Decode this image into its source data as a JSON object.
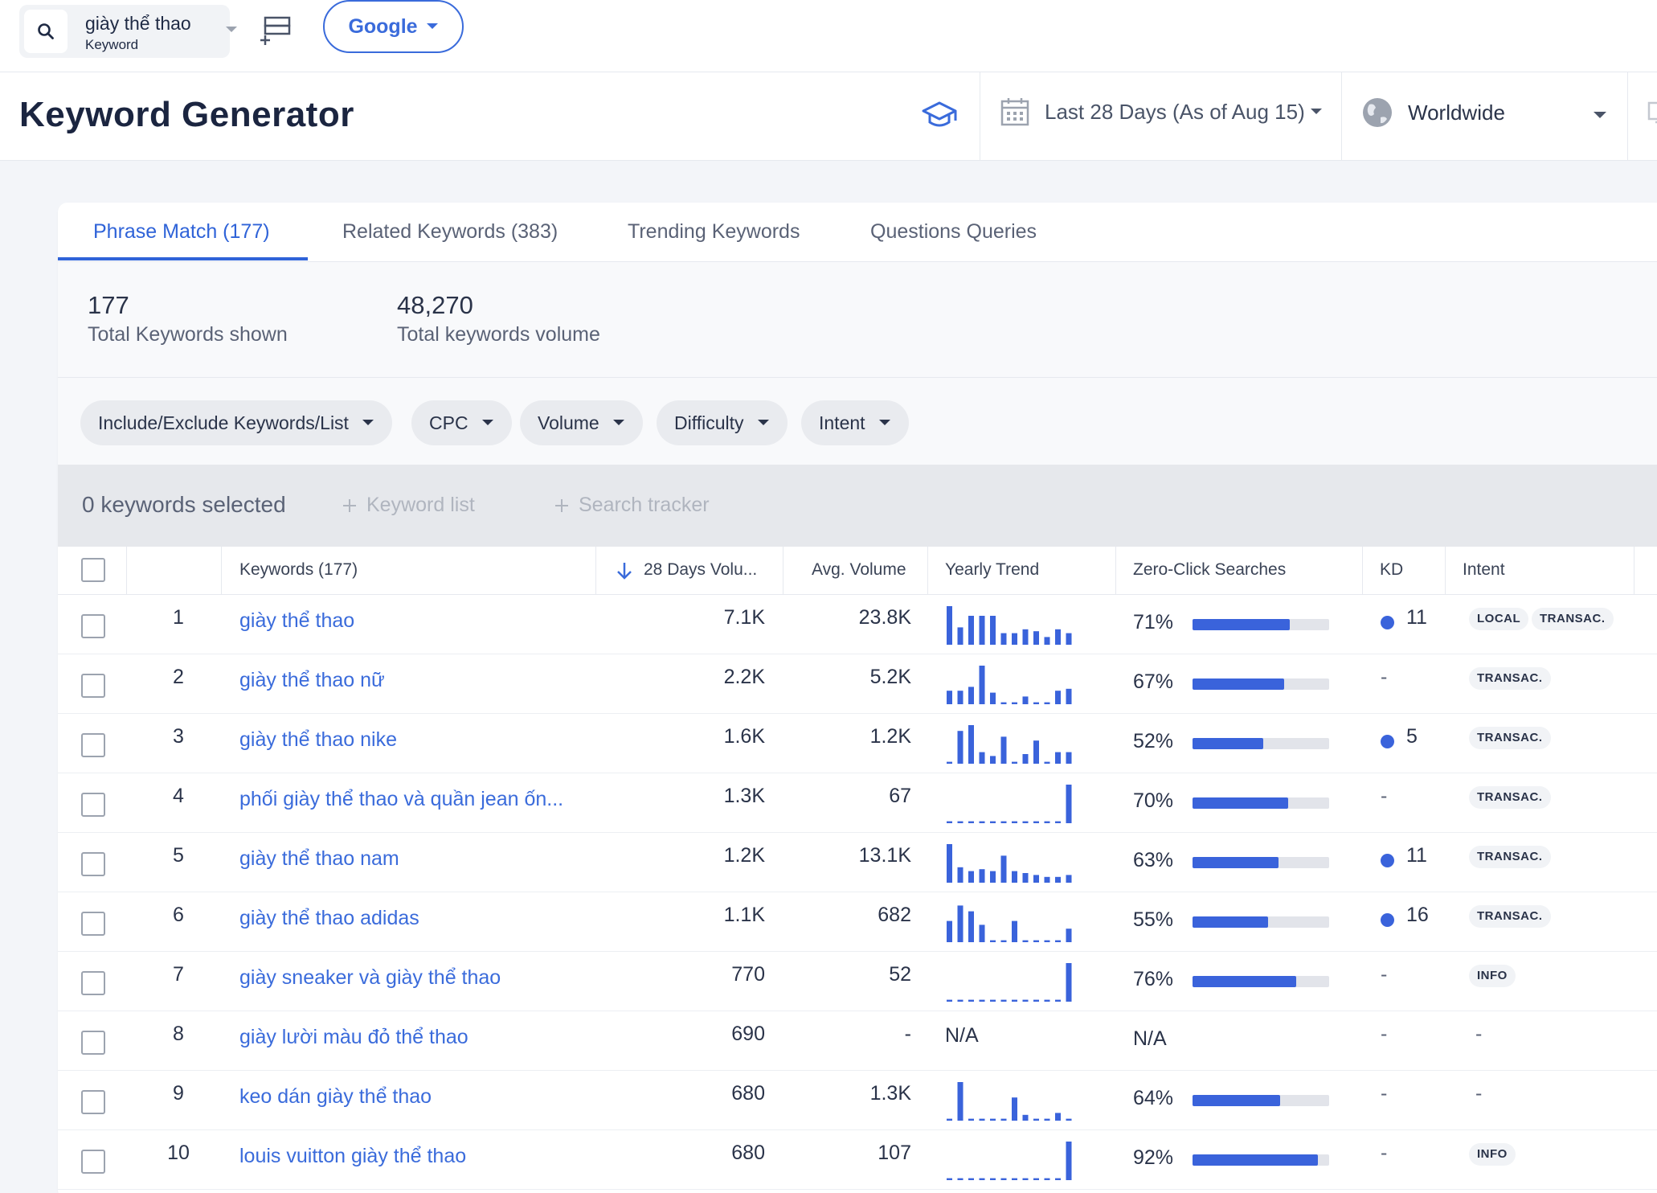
{
  "topbar": {
    "keyword": "giày thể thao",
    "keyword_type": "Keyword",
    "engine": "Google"
  },
  "header": {
    "title": "Keyword Generator",
    "date_range": "Last 28 Days (As of Aug 15)",
    "location": "Worldwide"
  },
  "tabs": [
    {
      "label": "Phrase Match (177)",
      "active": true
    },
    {
      "label": "Related Keywords (383)",
      "active": false
    },
    {
      "label": "Trending Keywords",
      "active": false
    },
    {
      "label": "Questions Queries",
      "active": false
    }
  ],
  "summary": {
    "keywords_count": "177",
    "keywords_label": "Total Keywords shown",
    "volume_total": "48,270",
    "volume_label": "Total keywords volume"
  },
  "filters": [
    "Include/Exclude Keywords/List",
    "CPC",
    "Volume",
    "Difficulty",
    "Intent"
  ],
  "selection": {
    "count_text": "0 keywords selected",
    "keyword_list": "Keyword list",
    "search_tracker": "Search tracker"
  },
  "table": {
    "headers": {
      "keywords": "Keywords (177)",
      "days_volume": "28 Days Volu...",
      "avg_volume": "Avg. Volume",
      "yearly_trend": "Yearly Trend",
      "zero_click": "Zero-Click Searches",
      "kd": "KD",
      "intent": "Intent"
    },
    "rows": [
      {
        "rank": "1",
        "keyword": "giày thể thao",
        "days_volume": "7.1K",
        "avg_volume": "23.8K",
        "trend": [
          1.0,
          0.45,
          0.75,
          0.75,
          0.75,
          0.3,
          0.3,
          0.4,
          0.35,
          0.2,
          0.4,
          0.3
        ],
        "zero_click": "71%",
        "zc_pct": 71,
        "kd": "11",
        "kd_dot": true,
        "intents": [
          "LOCAL",
          "TRANSAC."
        ]
      },
      {
        "rank": "2",
        "keyword": "giày thể thao nữ",
        "days_volume": "2.2K",
        "avg_volume": "5.2K",
        "trend": [
          0.35,
          0.35,
          0.45,
          1.0,
          0.3,
          0.05,
          0.05,
          0.2,
          0.05,
          0.05,
          0.35,
          0.4
        ],
        "zero_click": "67%",
        "zc_pct": 67,
        "kd": "-",
        "kd_dot": false,
        "intents": [
          "TRANSAC."
        ]
      },
      {
        "rank": "3",
        "keyword": "giày thể thao nike",
        "days_volume": "1.6K",
        "avg_volume": "1.2K",
        "trend": [
          0.05,
          0.85,
          1.0,
          0.3,
          0.2,
          0.7,
          0.05,
          0.25,
          0.6,
          0.05,
          0.3,
          0.3
        ],
        "zero_click": "52%",
        "zc_pct": 52,
        "kd": "5",
        "kd_dot": true,
        "intents": [
          "TRANSAC."
        ]
      },
      {
        "rank": "4",
        "keyword": "phối giày thể thao và quần jean ốn...",
        "days_volume": "1.3K",
        "avg_volume": "67",
        "trend": [
          0.05,
          0.05,
          0.05,
          0.05,
          0.05,
          0.05,
          0.05,
          0.05,
          0.05,
          0.05,
          0.05,
          1.0
        ],
        "zero_click": "70%",
        "zc_pct": 70,
        "kd": "-",
        "kd_dot": false,
        "intents": [
          "TRANSAC."
        ]
      },
      {
        "rank": "5",
        "keyword": "giày thể thao nam",
        "days_volume": "1.2K",
        "avg_volume": "13.1K",
        "trend": [
          1.0,
          0.4,
          0.3,
          0.35,
          0.3,
          0.7,
          0.3,
          0.25,
          0.2,
          0.15,
          0.15,
          0.2
        ],
        "zero_click": "63%",
        "zc_pct": 63,
        "kd": "11",
        "kd_dot": true,
        "intents": [
          "TRANSAC."
        ]
      },
      {
        "rank": "6",
        "keyword": "giày thể thao adidas",
        "days_volume": "1.1K",
        "avg_volume": "682",
        "trend": [
          0.55,
          0.95,
          0.8,
          0.45,
          0.05,
          0.05,
          0.55,
          0.05,
          0.05,
          0.05,
          0.05,
          0.35
        ],
        "zero_click": "55%",
        "zc_pct": 55,
        "kd": "16",
        "kd_dot": true,
        "intents": [
          "TRANSAC."
        ]
      },
      {
        "rank": "7",
        "keyword": "giày sneaker và giày thể thao",
        "days_volume": "770",
        "avg_volume": "52",
        "trend": [
          0.05,
          0.05,
          0.05,
          0.05,
          0.05,
          0.05,
          0.05,
          0.05,
          0.05,
          0.05,
          0.05,
          1.0
        ],
        "zero_click": "76%",
        "zc_pct": 76,
        "kd": "-",
        "kd_dot": false,
        "intents": [
          "INFO"
        ]
      },
      {
        "rank": "8",
        "keyword": "giày lười màu đỏ thể thao",
        "days_volume": "690",
        "avg_volume": "-",
        "trend": [],
        "trend_text": "N/A",
        "zero_click": "N/A",
        "zc_pct": null,
        "kd": "-",
        "kd_dot": false,
        "intents": [],
        "intent_text": "-"
      },
      {
        "rank": "9",
        "keyword": "keo dán giày thể thao",
        "days_volume": "680",
        "avg_volume": "1.3K",
        "trend": [
          0.05,
          1.0,
          0.05,
          0.05,
          0.05,
          0.05,
          0.6,
          0.15,
          0.05,
          0.05,
          0.2,
          0.05
        ],
        "zero_click": "64%",
        "zc_pct": 64,
        "kd": "-",
        "kd_dot": false,
        "intents": [],
        "intent_text": "-"
      },
      {
        "rank": "10",
        "keyword": "louis vuitton giày thể thao",
        "days_volume": "680",
        "avg_volume": "107",
        "trend": [
          0.05,
          0.05,
          0.05,
          0.05,
          0.05,
          0.05,
          0.05,
          0.05,
          0.05,
          0.05,
          0.05,
          1.0
        ],
        "zero_click": "92%",
        "zc_pct": 92,
        "kd": "-",
        "kd_dot": false,
        "intents": [
          "INFO"
        ]
      }
    ]
  },
  "colors": {
    "accent": "#3a63db",
    "link": "#3a6bdb",
    "bar_track": "#e2e4ea"
  }
}
